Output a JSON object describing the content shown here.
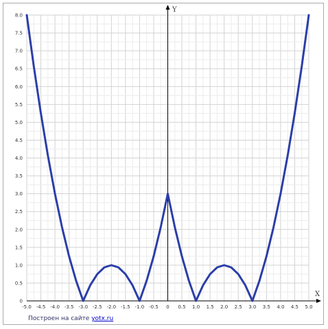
{
  "chart_data": {
    "type": "line",
    "xlabel": "X",
    "ylabel": "Y",
    "xlim": [
      -5.0,
      5.0
    ],
    "ylim": [
      0,
      8.0
    ],
    "grid": true,
    "x_ticks": [
      "-5.0",
      "-4.5",
      "-4.0",
      "-3.5",
      "-3.0",
      "-2.5",
      "-2.0",
      "-1.5",
      "-1.0",
      "-0.5",
      "0",
      "0.5",
      "1.0",
      "1.5",
      "2.0",
      "2.5",
      "3.0",
      "3.5",
      "4.0",
      "4.5",
      "5.0"
    ],
    "y_ticks": [
      "0",
      "0.5",
      "1.0",
      "1.5",
      "2.0",
      "2.5",
      "3.0",
      "3.5",
      "4.0",
      "4.5",
      "5.0",
      "5.5",
      "6.0",
      "6.5",
      "7.0",
      "7.5",
      "8.0"
    ],
    "line_color": "#2b3ea8",
    "series": [
      {
        "x": [
          -5.0,
          -4.75,
          -4.5,
          -4.25,
          -4.0,
          -3.75,
          -3.5,
          -3.25,
          -3.0,
          -2.75,
          -2.5,
          -2.25,
          -2.0,
          -1.75,
          -1.5,
          -1.25,
          -1.0,
          -0.75,
          -0.5,
          -0.25,
          0.0,
          0.25,
          0.5,
          0.75,
          1.0,
          1.25,
          1.5,
          1.75,
          2.0,
          2.25,
          2.5,
          2.75,
          3.0,
          3.25,
          3.5,
          3.75,
          4.0,
          4.25,
          4.5,
          4.75,
          5.0
        ],
        "y": [
          8.0,
          6.5625,
          5.25,
          4.0625,
          3.0,
          2.0625,
          1.25,
          0.5625,
          0.0,
          0.4375,
          0.75,
          0.9375,
          1.0,
          0.9375,
          0.75,
          0.4375,
          0.0,
          0.5625,
          1.25,
          2.0625,
          3.0,
          2.0625,
          1.25,
          0.5625,
          0.0,
          0.4375,
          0.75,
          0.9375,
          1.0,
          0.9375,
          0.75,
          0.4375,
          0.0,
          0.5625,
          1.25,
          2.0625,
          3.0,
          4.0625,
          5.25,
          6.5625,
          8.0
        ]
      }
    ]
  },
  "footer": {
    "credit_text": "Построен на сайте",
    "credit_link": "yotx.ru"
  }
}
